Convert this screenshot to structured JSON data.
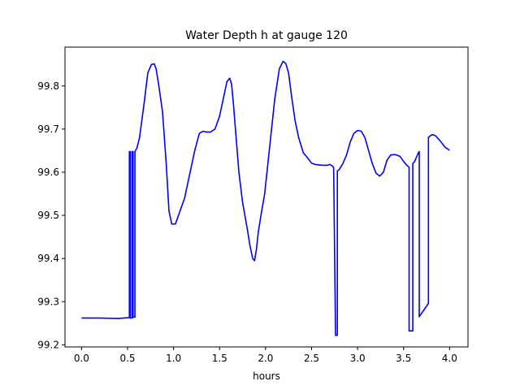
{
  "chart_data": {
    "type": "line",
    "title": "Water Depth h at gauge 120",
    "xlabel": "hours",
    "ylabel": "",
    "xlim": [
      -0.18,
      4.2
    ],
    "ylim": [
      99.195,
      99.89
    ],
    "xticks": [
      0.0,
      0.5,
      1.0,
      1.5,
      2.0,
      2.5,
      3.0,
      3.5,
      4.0
    ],
    "xtick_labels": [
      "0.0",
      "0.5",
      "1.0",
      "1.5",
      "2.0",
      "2.5",
      "3.0",
      "3.5",
      "4.0"
    ],
    "yticks": [
      99.2,
      99.3,
      99.4,
      99.5,
      99.6,
      99.7,
      99.8
    ],
    "ytick_labels": [
      "99.2",
      "99.3",
      "99.4",
      "99.5",
      "99.6",
      "99.7",
      "99.8"
    ],
    "grid": false,
    "series": [
      {
        "color": "#0000ff",
        "x": [
          0.0,
          0.2,
          0.4,
          0.52,
          0.52,
          0.53,
          0.53,
          0.55,
          0.55,
          0.56,
          0.56,
          0.58,
          0.58,
          0.6,
          0.63,
          0.68,
          0.72,
          0.76,
          0.79,
          0.81,
          0.84,
          0.88,
          0.92,
          0.95,
          0.98,
          1.02,
          1.07,
          1.12,
          1.18,
          1.23,
          1.28,
          1.32,
          1.36,
          1.4,
          1.45,
          1.5,
          1.55,
          1.58,
          1.61,
          1.63,
          1.65,
          1.68,
          1.71,
          1.75,
          1.8,
          1.83,
          1.86,
          1.88,
          1.9,
          1.92,
          1.95,
          1.99,
          2.04,
          2.1,
          2.15,
          2.19,
          2.22,
          2.25,
          2.28,
          2.32,
          2.36,
          2.41,
          2.45,
          2.5,
          2.54,
          2.58,
          2.62,
          2.67,
          2.7,
          2.73,
          2.74,
          2.76,
          2.76,
          2.78,
          2.78,
          2.8,
          2.84,
          2.88,
          2.92,
          2.96,
          3.0,
          3.04,
          3.08,
          3.12,
          3.16,
          3.2,
          3.24,
          3.28,
          3.32,
          3.36,
          3.41,
          3.46,
          3.5,
          3.54,
          3.56,
          3.56,
          3.6,
          3.6,
          3.62,
          3.64,
          3.66,
          3.67,
          3.67,
          3.77,
          3.77,
          3.8,
          3.82,
          3.85,
          3.9,
          3.95,
          4.0
        ],
        "y": [
          99.262,
          99.262,
          99.261,
          99.263,
          99.648,
          99.648,
          99.262,
          99.262,
          99.648,
          99.648,
          99.264,
          99.264,
          99.648,
          99.655,
          99.68,
          99.76,
          99.83,
          99.85,
          99.851,
          99.84,
          99.8,
          99.74,
          99.62,
          99.51,
          99.48,
          99.48,
          99.51,
          99.54,
          99.6,
          99.65,
          99.69,
          99.695,
          99.693,
          99.693,
          99.7,
          99.73,
          99.78,
          99.81,
          99.818,
          99.805,
          99.76,
          99.68,
          99.6,
          99.53,
          99.47,
          99.43,
          99.4,
          99.395,
          99.42,
          99.46,
          99.5,
          99.55,
          99.65,
          99.77,
          99.84,
          99.857,
          99.852,
          99.83,
          99.78,
          99.72,
          99.68,
          99.645,
          99.635,
          99.621,
          99.618,
          99.617,
          99.616,
          99.616,
          99.618,
          99.614,
          99.61,
          99.225,
          99.222,
          99.222,
          99.603,
          99.606,
          99.62,
          99.64,
          99.67,
          99.69,
          99.697,
          99.695,
          99.68,
          99.65,
          99.62,
          99.598,
          99.591,
          99.6,
          99.628,
          99.64,
          99.641,
          99.637,
          99.625,
          99.615,
          99.612,
          99.232,
          99.232,
          99.62,
          99.625,
          99.635,
          99.645,
          99.648,
          99.265,
          99.296,
          99.681,
          99.686,
          99.687,
          99.684,
          99.672,
          99.658,
          99.651
        ]
      }
    ]
  }
}
